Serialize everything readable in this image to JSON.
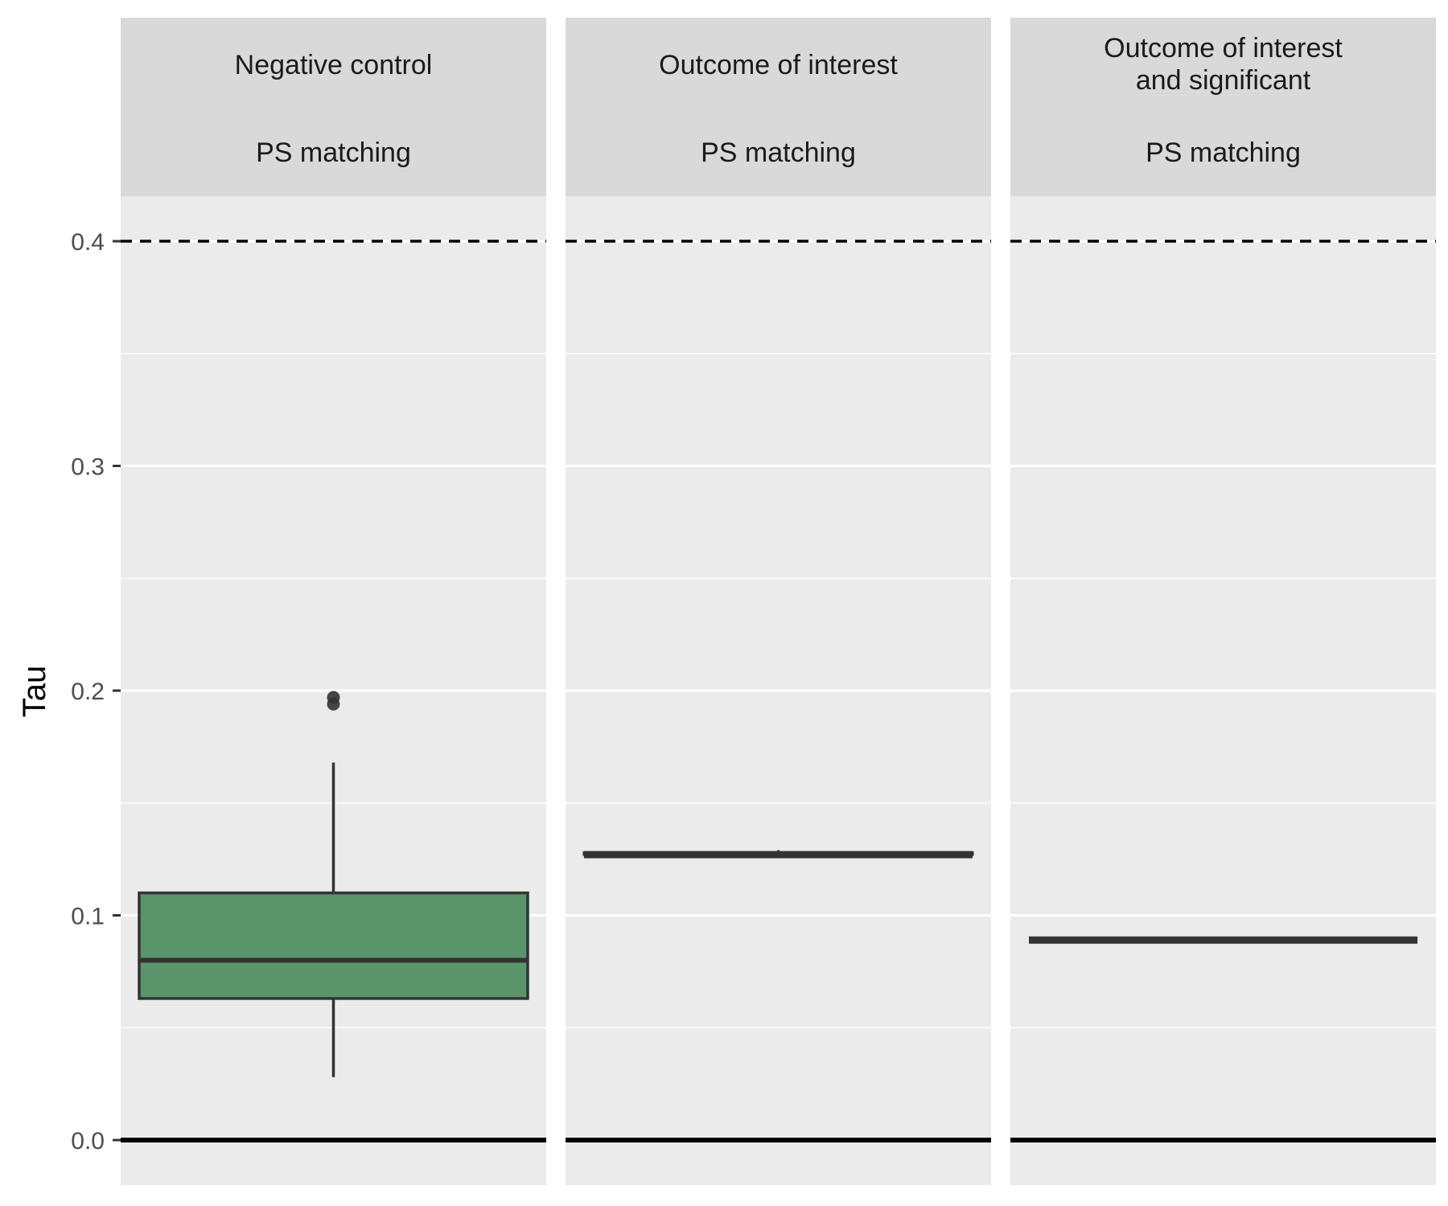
{
  "chart_data": {
    "type": "boxplot",
    "ylabel": "Tau",
    "ylim": [
      -0.02,
      0.42
    ],
    "yticks": [
      "0.0",
      "0.1",
      "0.2",
      "0.3",
      "0.4"
    ],
    "grid": true,
    "reference_lines": {
      "solid": 0.0,
      "dashed": 0.4
    },
    "colors": {
      "box_fill": "#5a946b",
      "box_stroke": "#333333",
      "panel_bg": "#ebebeb",
      "strip_bg": "#d9d9d9"
    },
    "facets": [
      {
        "label_lines": [
          "Negative control"
        ],
        "sublabel": "PS matching",
        "stats": {
          "min": 0.028,
          "q1": 0.063,
          "median": 0.08,
          "q3": 0.11,
          "max": 0.168
        },
        "outliers": [
          0.197,
          0.194
        ]
      },
      {
        "label_lines": [
          "Outcome of interest"
        ],
        "sublabel": "PS matching",
        "stats": {
          "min": 0.126,
          "q1": 0.127,
          "median": 0.127,
          "q3": 0.128,
          "max": 0.129
        },
        "outliers": []
      },
      {
        "label_lines": [
          "Outcome of interest",
          "and significant"
        ],
        "sublabel": "PS matching",
        "stats": {
          "min": 0.089,
          "q1": 0.089,
          "median": 0.089,
          "q3": 0.089,
          "max": 0.089
        },
        "outliers": []
      }
    ]
  }
}
